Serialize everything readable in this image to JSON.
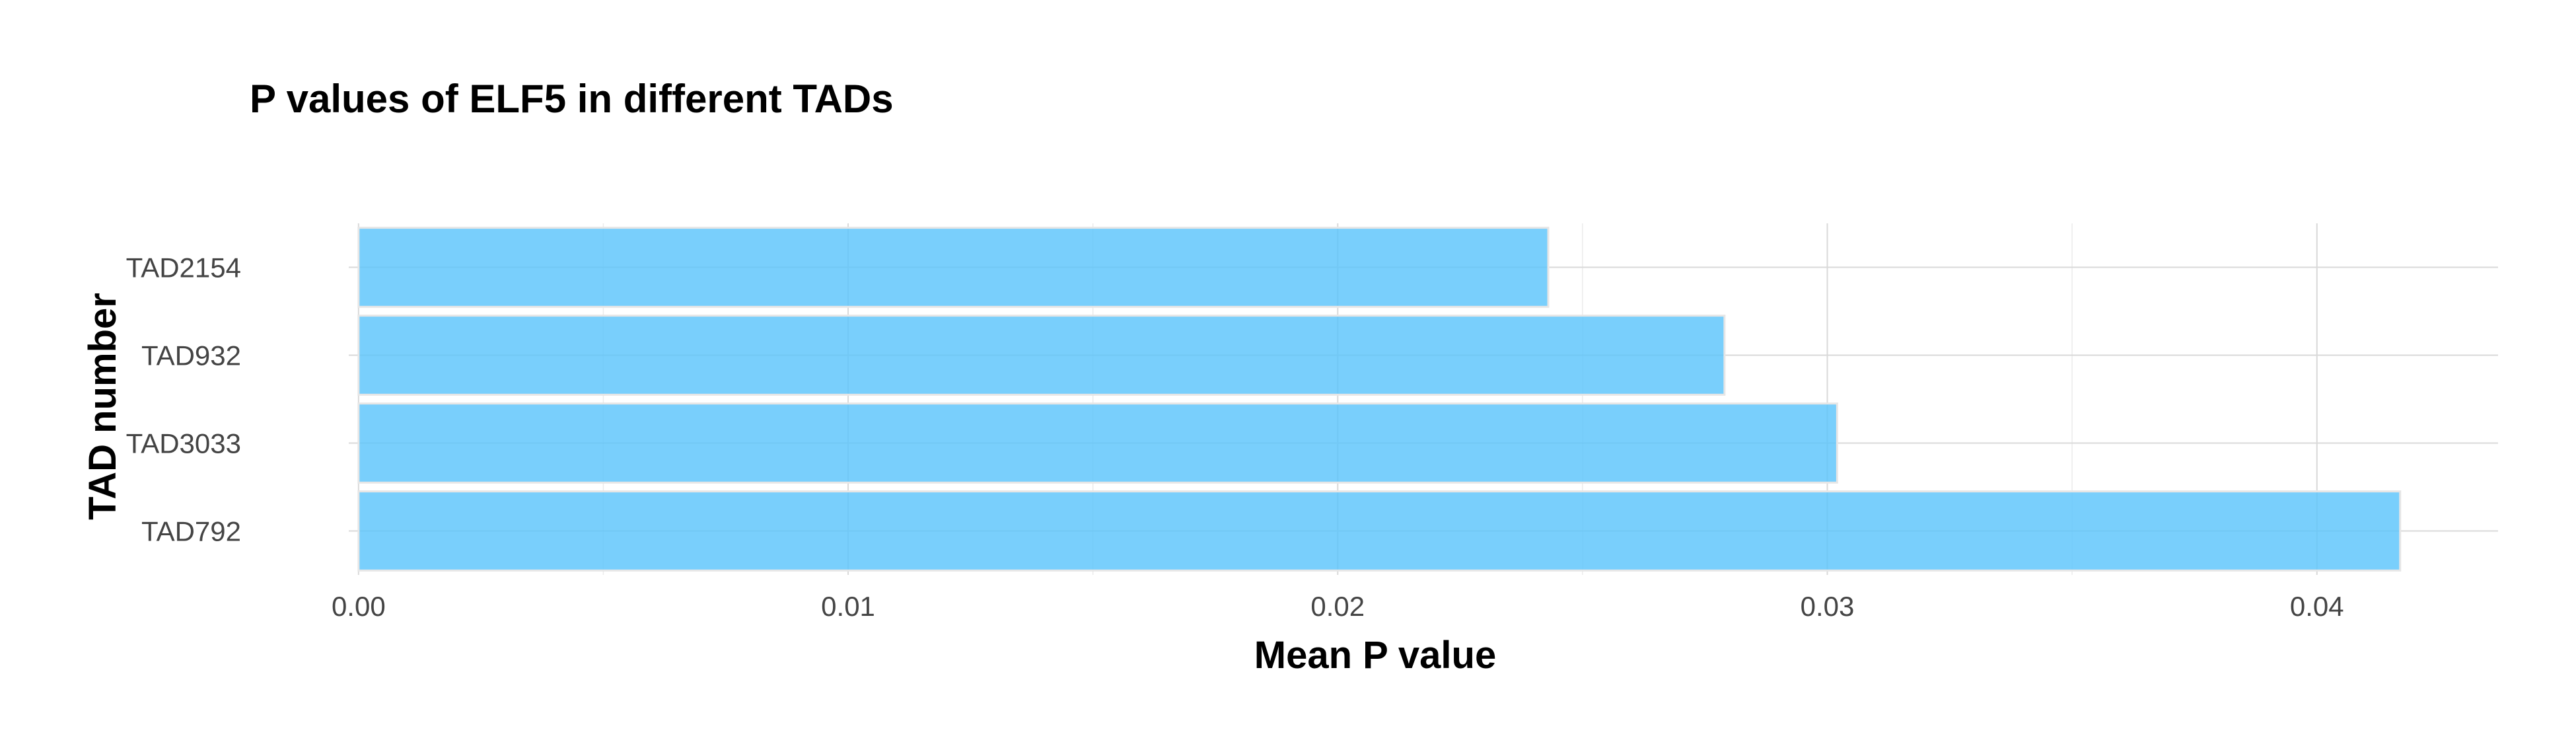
{
  "chart_data": {
    "type": "bar",
    "orientation": "horizontal",
    "title": "P values of ELF5 in different TADs",
    "xlabel": "Mean P value",
    "ylabel": "TAD number",
    "categories": [
      "TAD2154",
      "TAD932",
      "TAD3033",
      "TAD792"
    ],
    "values": [
      0.0243,
      0.0279,
      0.0302,
      0.0417
    ],
    "xlim": [
      -0.0002,
      0.0437
    ],
    "xticks": [
      0.0,
      0.01,
      0.02,
      0.03,
      0.04
    ],
    "xtick_labels": [
      "0.00",
      "0.01",
      "0.02",
      "0.03",
      "0.04"
    ],
    "grid": true,
    "legend": "none",
    "bar_color": "#5bc4fb"
  }
}
